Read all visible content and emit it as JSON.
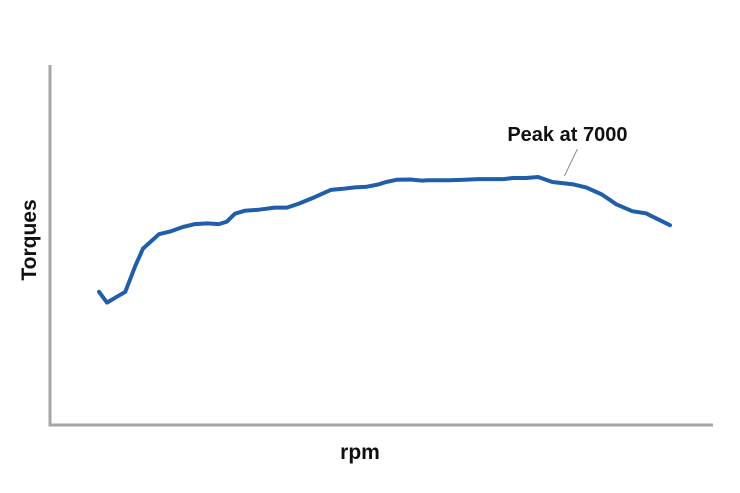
{
  "chart_data": {
    "type": "line",
    "title": "",
    "xlabel": "rpm",
    "ylabel": "Torques",
    "xlim": [
      0,
      100
    ],
    "ylim": [
      0,
      100
    ],
    "grid": false,
    "legend": "none",
    "colors": {
      "series": "#1f5ea8",
      "axis": "#a6a6a6",
      "annotation_line": "#8c8c8c",
      "text": "#111111"
    },
    "series": [
      {
        "x": [
          0,
          1.4,
          3,
          4.6,
          6.3,
          7.7,
          9.1,
          10.5,
          12.6,
          14.7,
          16.8,
          18.9,
          21,
          22.4,
          23.8,
          25.5,
          28,
          30.8,
          32.9,
          35,
          37.8,
          40.6,
          42.7,
          44.8,
          46.9,
          48.9,
          50.3,
          52.1,
          54.5,
          56.6,
          57.5,
          59.4,
          61.5,
          64,
          66.4,
          68.5,
          70.8,
          72.5,
          74.8,
          76.9,
          79.4,
          82.9,
          85.3,
          86.7,
          88.1,
          90.6,
          93.4,
          95.8,
          96.8,
          100
        ],
        "y": [
          37,
          34,
          35.5,
          37,
          44,
          49,
          51,
          53,
          53.8,
          55,
          55.8,
          56,
          55.8,
          56.5,
          58.7,
          59.5,
          59.8,
          60.4,
          60.4,
          61.5,
          63.3,
          65.3,
          65.6,
          66,
          66.2,
          66.8,
          67.5,
          68.1,
          68.2,
          67.9,
          68,
          68,
          68,
          68.1,
          68.3,
          68.3,
          68.3,
          68.6,
          68.6,
          68.9,
          67.5,
          66.9,
          66,
          65,
          64,
          61.3,
          59.4,
          58.8,
          58,
          55.5
        ]
      }
    ],
    "annotations": [
      {
        "text": "Peak at 7000",
        "x": 81.5,
        "y": 68.9
      }
    ]
  }
}
